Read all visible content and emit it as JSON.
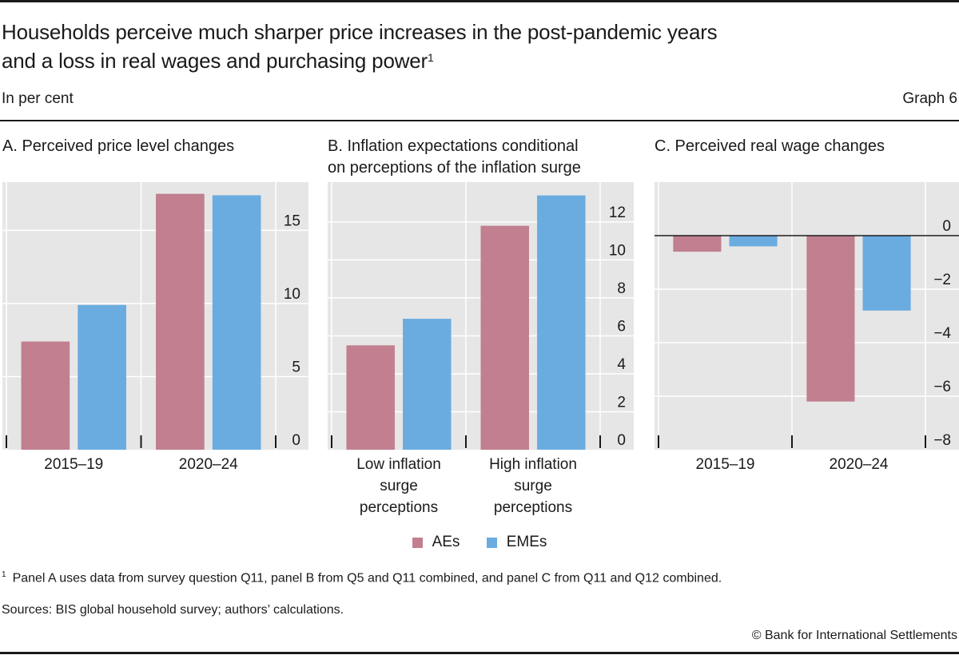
{
  "header": {
    "title_line1": "Households perceive much sharper price increases in the post-pandemic years",
    "title_line2": "and a loss in real wages and purchasing power",
    "title_footnote_marker": "1",
    "units": "In per cent",
    "graph_number": "Graph 6"
  },
  "legend": [
    {
      "label": "AEs",
      "color": "#c17f8f"
    },
    {
      "label": "EMEs",
      "color": "#6aace0"
    }
  ],
  "footer": {
    "footnote_marker": "1",
    "footnote": "Panel A uses data from survey question Q11, panel B from Q5 and Q11 combined, and panel C from Q11 and Q12 combined.",
    "sources": "Sources: BIS global household survey; authors’ calculations.",
    "copyright": "© Bank for International Settlements"
  },
  "chart_data": [
    {
      "type": "bar",
      "title": "A. Perceived price level changes",
      "xlabel": "",
      "ylabel": "",
      "categories": [
        [
          "2015–19"
        ],
        [
          "2020–24"
        ]
      ],
      "series": [
        {
          "name": "AEs",
          "values": [
            7.4,
            17.5
          ]
        },
        {
          "name": "EMEs",
          "values": [
            9.9,
            17.4
          ]
        }
      ],
      "ylim": [
        0,
        18.3
      ],
      "yticks": [
        0,
        5,
        10,
        15
      ],
      "ytick_labels": [
        "0",
        "5",
        "10",
        "15"
      ],
      "grid": true,
      "yaxis_side": "right"
    },
    {
      "type": "bar",
      "title": "B. Inflation expectations conditional on perceptions of the inflation surge",
      "title_lines": [
        "B. Inflation expectations conditional",
        "on perceptions of the inflation surge"
      ],
      "xlabel": "",
      "ylabel": "",
      "categories": [
        [
          "Low inflation",
          "surge",
          "perceptions"
        ],
        [
          "High inflation",
          "surge",
          "perceptions"
        ]
      ],
      "series": [
        {
          "name": "AEs",
          "values": [
            5.5,
            11.8
          ]
        },
        {
          "name": "EMEs",
          "values": [
            6.9,
            13.4
          ]
        }
      ],
      "ylim": [
        0,
        14.1
      ],
      "yticks": [
        0,
        2,
        4,
        6,
        8,
        10,
        12
      ],
      "ytick_labels": [
        "0",
        "2",
        "4",
        "6",
        "8",
        "10",
        "12"
      ],
      "grid": true,
      "yaxis_side": "right"
    },
    {
      "type": "bar",
      "title": "C. Perceived real wage changes",
      "xlabel": "",
      "ylabel": "",
      "categories": [
        [
          "2015–19"
        ],
        [
          "2020–24"
        ]
      ],
      "series": [
        {
          "name": "AEs",
          "values": [
            -0.6,
            -6.2
          ]
        },
        {
          "name": "EMEs",
          "values": [
            -0.4,
            -2.8
          ]
        }
      ],
      "ylim": [
        -8,
        2
      ],
      "yticks": [
        -8,
        -6,
        -4,
        -2,
        0
      ],
      "ytick_labels": [
        "−8",
        "−6",
        "−4",
        "−2",
        "0"
      ],
      "grid": true,
      "zero_line": true,
      "yaxis_side": "right"
    }
  ]
}
